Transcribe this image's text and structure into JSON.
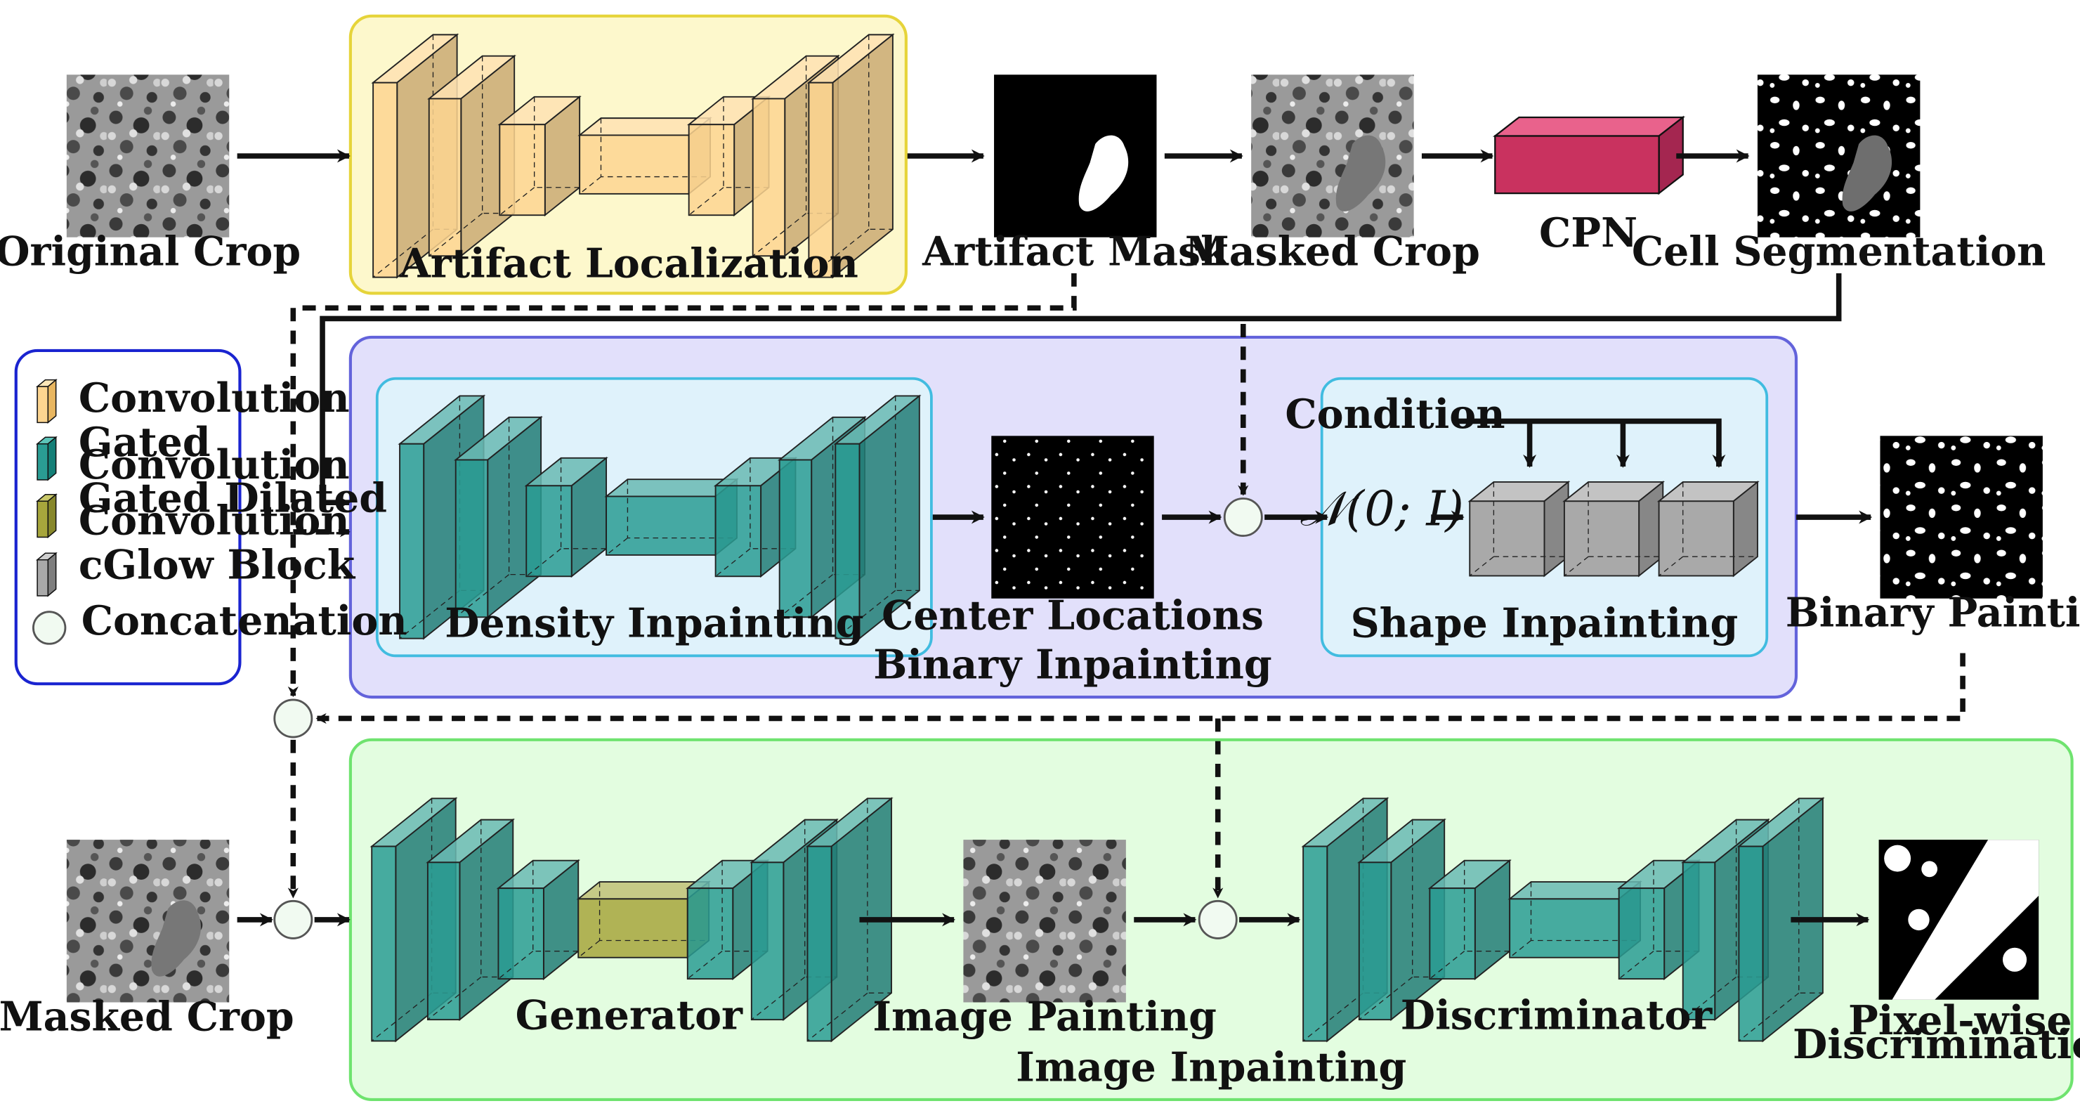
{
  "colors": {
    "convolution": "#fdd590",
    "gated_convolution": "#2a9c93",
    "gated_dilated_convolution": "#a7a63c",
    "cglow_block": "#a9a9a9",
    "cpn": "#c9325f",
    "artifact_box_fill": "#fdf8cc",
    "artifact_box_stroke": "#e6d43a",
    "binary_box_fill": "#e2e0fb",
    "binary_box_stroke": "#6363db",
    "inner_box_fill": "#dff2fb",
    "inner_box_stroke": "#41bce0",
    "image_box_fill": "#e3fde0",
    "image_box_stroke": "#6fe36f",
    "legend_stroke": "#1a24d0"
  },
  "nodes": {
    "original_crop": "Original Crop",
    "artifact_mask": "Artifact Mask",
    "masked_crop_top": "Masked Crop",
    "cpn": "CPN",
    "cell_segmentation": "Cell Segmentation",
    "center_locations": "Center Locations",
    "binary_painting": "Binary Painting",
    "masked_crop_bottom": "Masked Crop",
    "image_painting": "Image Painting",
    "pixel_wise_line1": "Pixel-wise",
    "pixel_wise_line2": "Discrimination"
  },
  "modules": {
    "artifact_localization": "Artifact Localization",
    "binary_inpainting": "Binary Inpainting",
    "density_inpainting": "Density Inpainting",
    "shape_inpainting": "Shape Inpainting",
    "image_inpainting": "Image Inpainting",
    "generator": "Generator",
    "discriminator": "Discriminator",
    "condition": "Condition",
    "normal_dist": "𝒩(0; I)"
  },
  "legend": {
    "convolution": "Convolution",
    "gated_line1": "Gated",
    "gated_line2": "Convolution",
    "dilated_line1": "Gated Dilated",
    "dilated_line2": "Convolution",
    "cglow": "cGlow Block",
    "concatenation": "Concatenation"
  }
}
